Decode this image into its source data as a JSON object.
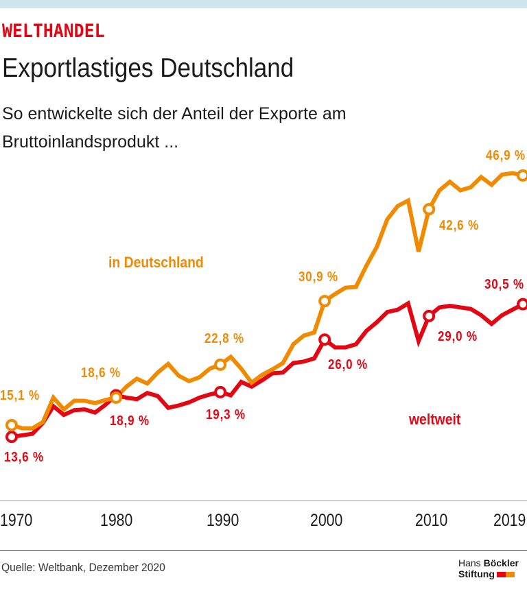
{
  "header": {
    "kicker": "WELTHANDEL",
    "title": "Exportlastiges Deutschland",
    "subtitle_line1": "So entwickelte sich der Anteil der Exporte am",
    "subtitle_line2": "Bruttoinlandsprodukt ..."
  },
  "footer": {
    "source": "Quelle: Weltbank, Dezember 2020",
    "logo_line1_a": "Hans ",
    "logo_line1_b": "Böckler",
    "logo_line2": "Stiftung"
  },
  "chart_data": {
    "type": "line",
    "title": "Exportlastiges Deutschland",
    "ylabel": "",
    "xlabel": "",
    "xlim": [
      1970,
      2019
    ],
    "ylim": [
      10,
      50
    ],
    "grid": false,
    "x_ticks": [
      "1970",
      "1980",
      "1990",
      "2000",
      "2010",
      "2019"
    ],
    "x": [
      1970,
      1971,
      1972,
      1973,
      1974,
      1975,
      1976,
      1977,
      1978,
      1979,
      1980,
      1981,
      1982,
      1983,
      1984,
      1985,
      1986,
      1987,
      1988,
      1989,
      1990,
      1991,
      1992,
      1993,
      1994,
      1995,
      1996,
      1997,
      1998,
      1999,
      2000,
      2001,
      2002,
      2003,
      2004,
      2005,
      2006,
      2007,
      2008,
      2009,
      2010,
      2011,
      2012,
      2013,
      2014,
      2015,
      2016,
      2017,
      2018,
      2019
    ],
    "series": [
      {
        "name": "in Deutschland",
        "color": "#f08a00",
        "values": [
          15.1,
          14.7,
          14.7,
          15.5,
          18.6,
          17.1,
          18.2,
          18.2,
          17.9,
          18.3,
          18.6,
          20.0,
          21.0,
          20.4,
          21.8,
          22.9,
          21.4,
          20.7,
          21.2,
          22.3,
          22.8,
          23.8,
          22.3,
          20.5,
          21.5,
          22.2,
          23.0,
          25.4,
          26.5,
          26.9,
          30.9,
          31.8,
          32.6,
          32.7,
          35.4,
          37.8,
          41.3,
          43.0,
          43.7,
          37.2,
          42.6,
          45.0,
          46.1,
          45.0,
          45.4,
          46.7,
          45.7,
          47.0,
          47.2,
          46.9
        ],
        "annotations": [
          {
            "year": 1970,
            "label": "15,1 %"
          },
          {
            "year": 1980,
            "label": "18,6 %"
          },
          {
            "year": 1990,
            "label": "22,8 %"
          },
          {
            "year": 2000,
            "label": "30,9 %"
          },
          {
            "year": 2010,
            "label": "42,6 %"
          },
          {
            "year": 2019,
            "label": "46,9 %"
          }
        ]
      },
      {
        "name": "weltweit",
        "color": "#e30613",
        "values": [
          13.6,
          13.8,
          14.0,
          15.4,
          17.5,
          16.4,
          17.0,
          17.1,
          16.7,
          17.7,
          18.9,
          18.6,
          18.4,
          19.2,
          18.8,
          17.3,
          17.6,
          18.0,
          18.6,
          19.0,
          19.3,
          18.9,
          20.6,
          20.0,
          20.8,
          21.7,
          21.8,
          23.0,
          23.2,
          23.6,
          26.0,
          25.0,
          25.0,
          25.4,
          27.1,
          28.2,
          29.5,
          29.8,
          30.6,
          25.8,
          29.0,
          30.1,
          30.3,
          30.1,
          29.9,
          29.1,
          28.0,
          29.1,
          29.8,
          30.5
        ],
        "annotations": [
          {
            "year": 1970,
            "label": "13,6 %"
          },
          {
            "year": 1980,
            "label": "18,9 %"
          },
          {
            "year": 1990,
            "label": "19,3 %"
          },
          {
            "year": 2000,
            "label": "26,0 %"
          },
          {
            "year": 2010,
            "label": "29,0 %"
          },
          {
            "year": 2019,
            "label": "30,5 %"
          }
        ]
      }
    ]
  }
}
